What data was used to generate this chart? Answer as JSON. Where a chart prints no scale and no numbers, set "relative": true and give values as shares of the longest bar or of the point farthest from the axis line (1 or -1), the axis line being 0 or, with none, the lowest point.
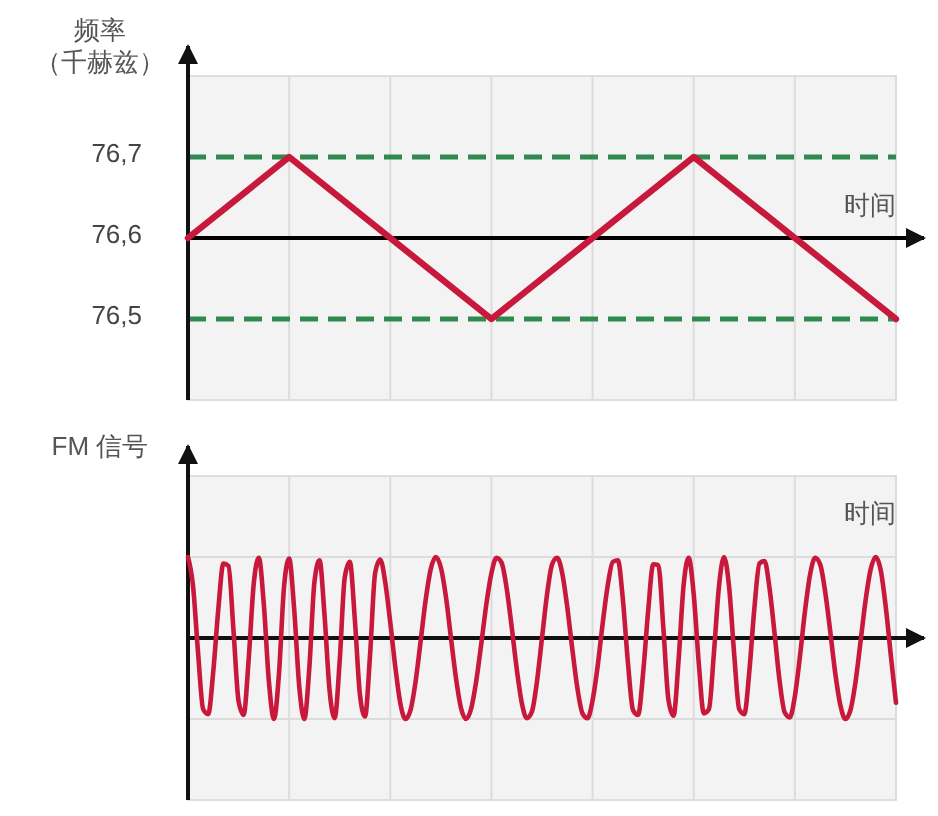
{
  "chart_data": [
    {
      "type": "line",
      "ylabel": "频率（千赫兹）",
      "xlabel": "时间",
      "categories": [
        null,
        null,
        null,
        null,
        null,
        null,
        null,
        null
      ],
      "series": [
        {
          "color": "#c8193c",
          "values": [
            76.6,
            76.7,
            76.6,
            76.5,
            76.6,
            76.7,
            76.6,
            76.5
          ]
        }
      ],
      "ylim": [
        76.4,
        76.8
      ],
      "yticks": [
        {
          "value": 76.5,
          "label": "76,5"
        },
        {
          "value": 76.6,
          "label": "76,6"
        },
        {
          "value": 76.7,
          "label": "76,7"
        }
      ],
      "ref_lines": [
        {
          "axis": "y",
          "value": 76.6,
          "color": "#000000"
        },
        {
          "axis": "y",
          "value": 76.7,
          "color": "#2f8a4f",
          "line_style": "dashed"
        },
        {
          "axis": "y",
          "value": 76.5,
          "color": "#2f8a4f",
          "line_style": "dashed"
        }
      ],
      "grid": true,
      "tick_labels": "y"
    },
    {
      "type": "line",
      "ylabel": "FM 信号",
      "xlabel": "时间",
      "relative": true,
      "categories": [
        null,
        null,
        null,
        null,
        null,
        null,
        null,
        null,
        null,
        null,
        null,
        null,
        null,
        null,
        null,
        null,
        null,
        null,
        null,
        null,
        null,
        null,
        null,
        null,
        null,
        null,
        null,
        null,
        null,
        null,
        null,
        null,
        null,
        null,
        null,
        null,
        null,
        null,
        null,
        null,
        null,
        null,
        null,
        null,
        null,
        null,
        null,
        null,
        null,
        null,
        null,
        null,
        null,
        null,
        null,
        null,
        null,
        null,
        null,
        null,
        null,
        null,
        null,
        null,
        null,
        null,
        null,
        null,
        null,
        null,
        null,
        null,
        null,
        null,
        null,
        null,
        null,
        null,
        null,
        null,
        null,
        null,
        null,
        null,
        null,
        null,
        null,
        null,
        null,
        null,
        null,
        null,
        null,
        null,
        null,
        null,
        null,
        null,
        null,
        null,
        null,
        null,
        null,
        null,
        null,
        null,
        null,
        null,
        null,
        null,
        null,
        null,
        null,
        null,
        null,
        null,
        null,
        null,
        null,
        null,
        null,
        null,
        null,
        null,
        null,
        null,
        null,
        null,
        null,
        null,
        null,
        null,
        null,
        null,
        null,
        null,
        null,
        null,
        null,
        null,
        null
      ],
      "series": [
        {
          "color": "#c8193c",
          "values": [
            1,
            0.64,
            -0.19,
            -0.88,
            -0.94,
            -0.41,
            0.36,
            0.92,
            0.89,
            0.09,
            -0.78,
            -0.95,
            -0.26,
            0.67,
            0.99,
            0.41,
            -0.54,
            -1,
            -0.43,
            0.64,
            0.98,
            0.35,
            -0.6,
            -1,
            -0.36,
            0.69,
            0.96,
            0.28,
            -0.65,
            -0.99,
            -0.28,
            0.75,
            0.94,
            0.22,
            -0.7,
            -0.97,
            -0.21,
            0.8,
            0.97,
            0.69,
            0.19,
            -0.36,
            -0.81,
            -1,
            -0.89,
            -0.54,
            -0.04,
            0.47,
            0.85,
            1,
            0.87,
            0.51,
            0,
            -0.5,
            -0.87,
            -1,
            -0.87,
            -0.53,
            -0.07,
            0.42,
            0.8,
            0.99,
            0.93,
            0.62,
            0.14,
            -0.38,
            -0.8,
            -0.99,
            -0.91,
            -0.54,
            0,
            0.54,
            0.91,
            0.99,
            0.8,
            0.38,
            -0.14,
            -0.62,
            -0.93,
            -0.99,
            -0.77,
            -0.35,
            0.18,
            0.65,
            0.94,
            0.96,
            0.47,
            -0.31,
            -0.89,
            -0.95,
            -0.43,
            0.34,
            0.91,
            0.9,
            0.12,
            -0.76,
            -0.96,
            -0.28,
            0.65,
            0.99,
            0.54,
            -0.31,
            -0.93,
            -0.88,
            -0.18,
            0.64,
            1,
            0.63,
            -0.2,
            -0.88,
            -0.94,
            -0.41,
            0.37,
            0.92,
            0.95,
            0.61,
            0.05,
            -0.54,
            -0.92,
            -0.98,
            -0.72,
            -0.23,
            0.33,
            0.78,
            0.99,
            0.91,
            0.57,
            0.08,
            -0.44,
            -0.83,
            -1,
            -0.89,
            -0.54,
            -0.04,
            0.47,
            0.85,
            1,
            0.83,
            0.37,
            -0.23,
            -0.8
          ]
        }
      ],
      "grid": true,
      "tick_labels": false
    }
  ]
}
